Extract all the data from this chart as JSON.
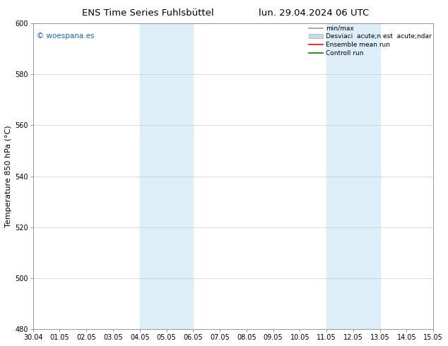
{
  "title_left": "ENS Time Series Fuhlsbüttel",
  "title_right": "lun. 29.04.2024 06 UTC",
  "ylabel": "Temperature 850 hPa (°C)",
  "ylim": [
    480,
    600
  ],
  "yticks": [
    480,
    500,
    520,
    540,
    560,
    580,
    600
  ],
  "xtick_labels": [
    "30.04",
    "01.05",
    "02.05",
    "03.05",
    "04.05",
    "05.05",
    "06.05",
    "07.05",
    "08.05",
    "09.05",
    "10.05",
    "11.05",
    "12.05",
    "13.05",
    "14.05",
    "15.05"
  ],
  "shaded_regions": [
    {
      "xstart": 4.0,
      "xend": 6.0,
      "color": "#ddeef9"
    },
    {
      "xstart": 11.0,
      "xend": 13.0,
      "color": "#ddeef9"
    }
  ],
  "watermark_text": "© woespana.es",
  "watermark_color": "#1565c0",
  "legend_labels": [
    "min/max",
    "Desviaci  acute;n est  acute;ndar",
    "Ensemble mean run",
    "Controll run"
  ],
  "legend_colors": [
    "#999999",
    "#c8daea",
    "red",
    "green"
  ],
  "legend_is_patch": [
    false,
    true,
    false,
    false
  ],
  "bg_color": "#ffffff",
  "grid_color": "#cccccc",
  "title_fontsize": 9.5,
  "tick_fontsize": 7,
  "ylabel_fontsize": 8,
  "legend_fontsize": 6.5,
  "watermark_fontsize": 7.5
}
